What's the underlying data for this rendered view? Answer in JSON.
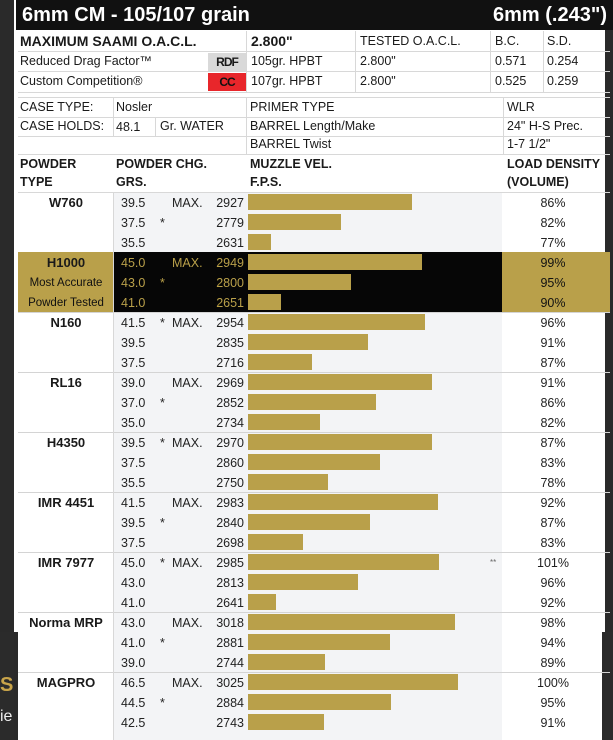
{
  "title": {
    "left": "6mm CM - 105/107 grain",
    "right": "6mm (.243\")"
  },
  "specs": {
    "max_saami_label": "MAXIMUM SAAMI O.A.C.L.",
    "max_saami_value": "2.800\"",
    "tested_label": "TESTED O.A.C.L.",
    "bc_label": "B.C.",
    "sd_label": "S.D.",
    "bullets": [
      {
        "name": "Reduced Drag Factor™",
        "badge": "RDF",
        "badge_color": "#d9d9d9",
        "bullet": "105gr. HPBT",
        "tested": "2.800\"",
        "bc": "0.571",
        "sd": "0.254"
      },
      {
        "name": "Custom Competition®",
        "badge": "CC",
        "badge_color": "#e8262b",
        "bullet": "107gr. HPBT",
        "tested": "2.800\"",
        "bc": "0.525",
        "sd": "0.259"
      }
    ]
  },
  "case": {
    "case_type_label": "CASE TYPE:",
    "case_type": "Nosler",
    "case_holds_label": "CASE HOLDS:",
    "case_holds": "48.1",
    "case_holds_unit": "Gr. WATER",
    "primer_label": "PRIMER TYPE",
    "primer": "WLR",
    "barrel_label": "BARREL Length/Make",
    "barrel": "24\" H-S Prec.",
    "twist_label": "BARREL Twist",
    "twist": "1-7 1/2\""
  },
  "headers": {
    "powder_type_1": "POWDER",
    "powder_type_2": "TYPE",
    "powder_chg_1": "POWDER CHG.",
    "powder_chg_2": "GRS.",
    "muzzle_1": "MUZZLE VEL.",
    "muzzle_2": "F.P.S.",
    "density_1": "LOAD DENSITY",
    "density_2": "(VOLUME)"
  },
  "colors": {
    "bar": "#b9a04a",
    "highlight_bg": "#060606",
    "badge_cc": "#e8262b"
  },
  "chart_data": {
    "type": "bar",
    "orientation": "horizontal",
    "title": "6mm CM - 105/107 grain",
    "xlabel": "MUZZLE VEL. F.P.S.",
    "xlim": [
      2582,
      3120
    ],
    "grid": false,
    "groups": [
      {
        "powder": "W760",
        "sub": [],
        "highlight": false,
        "rows": [
          {
            "charge": "39.5",
            "accurate": false,
            "max": true,
            "velocity": 2927,
            "density": "86%",
            "note": ""
          },
          {
            "charge": "37.5",
            "accurate": true,
            "max": false,
            "velocity": 2779,
            "density": "82%",
            "note": ""
          },
          {
            "charge": "35.5",
            "accurate": false,
            "max": false,
            "velocity": 2631,
            "density": "77%",
            "note": ""
          }
        ]
      },
      {
        "powder": "H1000",
        "sub": [
          "Most Accurate",
          "Powder Tested"
        ],
        "highlight": true,
        "rows": [
          {
            "charge": "45.0",
            "accurate": false,
            "max": true,
            "velocity": 2949,
            "density": "99%",
            "note": ""
          },
          {
            "charge": "43.0",
            "accurate": true,
            "max": false,
            "velocity": 2800,
            "density": "95%",
            "note": ""
          },
          {
            "charge": "41.0",
            "accurate": false,
            "max": false,
            "velocity": 2651,
            "density": "90%",
            "note": ""
          }
        ]
      },
      {
        "powder": "N160",
        "sub": [],
        "highlight": false,
        "rows": [
          {
            "charge": "41.5",
            "accurate": true,
            "max": true,
            "velocity": 2954,
            "density": "96%",
            "note": ""
          },
          {
            "charge": "39.5",
            "accurate": false,
            "max": false,
            "velocity": 2835,
            "density": "91%",
            "note": ""
          },
          {
            "charge": "37.5",
            "accurate": false,
            "max": false,
            "velocity": 2716,
            "density": "87%",
            "note": ""
          }
        ]
      },
      {
        "powder": "RL16",
        "sub": [],
        "highlight": false,
        "rows": [
          {
            "charge": "39.0",
            "accurate": false,
            "max": true,
            "velocity": 2969,
            "density": "91%",
            "note": ""
          },
          {
            "charge": "37.0",
            "accurate": true,
            "max": false,
            "velocity": 2852,
            "density": "86%",
            "note": ""
          },
          {
            "charge": "35.0",
            "accurate": false,
            "max": false,
            "velocity": 2734,
            "density": "82%",
            "note": ""
          }
        ]
      },
      {
        "powder": "H4350",
        "sub": [],
        "highlight": false,
        "rows": [
          {
            "charge": "39.5",
            "accurate": true,
            "max": true,
            "velocity": 2970,
            "density": "87%",
            "note": ""
          },
          {
            "charge": "37.5",
            "accurate": false,
            "max": false,
            "velocity": 2860,
            "density": "83%",
            "note": ""
          },
          {
            "charge": "35.5",
            "accurate": false,
            "max": false,
            "velocity": 2750,
            "density": "78%",
            "note": ""
          }
        ]
      },
      {
        "powder": "IMR 4451",
        "sub": [],
        "highlight": false,
        "rows": [
          {
            "charge": "41.5",
            "accurate": false,
            "max": true,
            "velocity": 2983,
            "density": "92%",
            "note": ""
          },
          {
            "charge": "39.5",
            "accurate": true,
            "max": false,
            "velocity": 2840,
            "density": "87%",
            "note": ""
          },
          {
            "charge": "37.5",
            "accurate": false,
            "max": false,
            "velocity": 2698,
            "density": "83%",
            "note": ""
          }
        ]
      },
      {
        "powder": "IMR 7977",
        "sub": [],
        "highlight": false,
        "rows": [
          {
            "charge": "45.0",
            "accurate": true,
            "max": true,
            "velocity": 2985,
            "density": "101%",
            "note": "**"
          },
          {
            "charge": "43.0",
            "accurate": false,
            "max": false,
            "velocity": 2813,
            "density": "96%",
            "note": ""
          },
          {
            "charge": "41.0",
            "accurate": false,
            "max": false,
            "velocity": 2641,
            "density": "92%",
            "note": ""
          }
        ]
      },
      {
        "powder": "Norma MRP",
        "sub": [],
        "highlight": false,
        "rows": [
          {
            "charge": "43.0",
            "accurate": false,
            "max": true,
            "velocity": 3018,
            "density": "98%",
            "note": ""
          },
          {
            "charge": "41.0",
            "accurate": true,
            "max": false,
            "velocity": 2881,
            "density": "94%",
            "note": ""
          },
          {
            "charge": "39.0",
            "accurate": false,
            "max": false,
            "velocity": 2744,
            "density": "89%",
            "note": ""
          }
        ]
      },
      {
        "powder": "MAGPRO",
        "sub": [],
        "highlight": false,
        "rows": [
          {
            "charge": "46.5",
            "accurate": false,
            "max": true,
            "velocity": 3025,
            "density": "100%",
            "note": ""
          },
          {
            "charge": "44.5",
            "accurate": true,
            "max": false,
            "velocity": 2884,
            "density": "95%",
            "note": ""
          },
          {
            "charge": "42.5",
            "accurate": false,
            "max": false,
            "velocity": 2743,
            "density": "91%",
            "note": ""
          }
        ]
      }
    ],
    "labels": {
      "max": "MAX.",
      "accurate_mark": "*"
    }
  },
  "background": {
    "left_fragment_1": "S",
    "left_fragment_2": "ie"
  }
}
